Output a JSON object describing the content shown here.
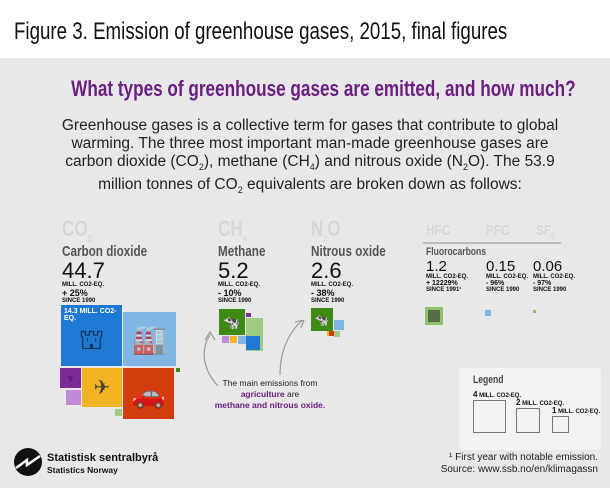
{
  "header": {
    "title": "Figure 3. Emission of greenhouse gases, 2015, final figures"
  },
  "subtitle": "What types of greenhouse gases are emitted, and how much?",
  "intro": {
    "p1": "Greenhouse gases is a collective term for gases that contribute to global warming. The three most important man-made greenhouse gases are carbon dioxide (CO",
    "p2": "), methane (CH",
    "p3": ") and nitrous oxide (N",
    "p4": "O). The 53.9 million tonnes of CO",
    "p5": " equivalents are broken down as follows:",
    "s2": "2",
    "s4": "4"
  },
  "gases": [
    {
      "formula": "CO",
      "sub": "2",
      "name": "Carbon dioxide",
      "value": "44.7",
      "unit": "MILL. CO2-EQ.",
      "change": "+ 25%",
      "since": "SINCE 1990"
    },
    {
      "formula": "CH",
      "sub": "4",
      "name": "Methane",
      "value": "5.2",
      "unit": "MILL. CO2-EQ.",
      "change": "- 10%",
      "since": "SINCE 1990"
    },
    {
      "formula": "N",
      "sub": "2",
      "formula2": "O",
      "name": "Nitrous oxide",
      "value": "2.6",
      "unit": "MILL. CO2-EQ.",
      "change": "- 38%",
      "since": "SINCE 1990"
    }
  ],
  "fluoro": {
    "group": "Fluorocarbons",
    "items": [
      {
        "formula": "HFC",
        "sub": "",
        "value": "1.2",
        "unit": "MILL. CO2-EQ.",
        "change": "+ 12229%",
        "since": "SINCE 1991¹"
      },
      {
        "formula": "PFC",
        "sub": "",
        "value": "0.15",
        "unit": "MILL. CO2-EQ.",
        "change": "- 96%",
        "since": "SINCE 1990"
      },
      {
        "formula": "SF",
        "sub": "6",
        "value": "0.06",
        "unit": "MILL. CO2-EQ.",
        "change": "- 97%",
        "since": "SINCE 1990"
      }
    ]
  },
  "co2_block_label": "14.3 MILL. CO2-EQ.",
  "agri_note": {
    "l1": "The main emissions from",
    "l2a": "agriculture",
    "l2b": " are",
    "l3": "methane and nitrous oxide."
  },
  "legend": {
    "title": "Legend",
    "items": [
      {
        "n": "4",
        "unit": "MILL. CO2-EQ."
      },
      {
        "n": "2",
        "unit": "MILL. CO2-EQ."
      },
      {
        "n": "1",
        "unit": "MILL. CO2-EQ."
      }
    ]
  },
  "footer": {
    "logo_l1": "Statistisk sentralbyrå",
    "logo_l2": "Statistics Norway",
    "footnote": "¹ First year with notable emission.",
    "source": "Source: www.ssb.no/en/klimagassn"
  },
  "colors": {
    "purple": "#6b1f80",
    "oil": "#1f78d1",
    "industry": "#7fb6e3",
    "transport": "#d33c0c",
    "aviation_shipping": "#f0b323",
    "energy": "#7d2a96",
    "agriculture": "#3f8a14",
    "agri_light": "#9fcb82"
  },
  "chart_data": {
    "type": "treemap",
    "title": "Figure 3. Emission of greenhouse gases, 2015, final figures",
    "unit": "million tonnes CO2 equivalents",
    "total": 53.9,
    "categories": [
      "CO2",
      "CH4",
      "N2O",
      "HFC",
      "PFC",
      "SF6"
    ],
    "values": [
      44.7,
      5.2,
      2.6,
      1.2,
      0.15,
      0.06
    ],
    "change_since": [
      "+25% since 1990",
      "-10% since 1990",
      "-38% since 1990",
      "+12229% since 1991",
      "-96% since 1990",
      "-97% since 1990"
    ],
    "annotations": [
      "14.3 mill. CO2-eq. (oil and gas extraction)"
    ]
  }
}
